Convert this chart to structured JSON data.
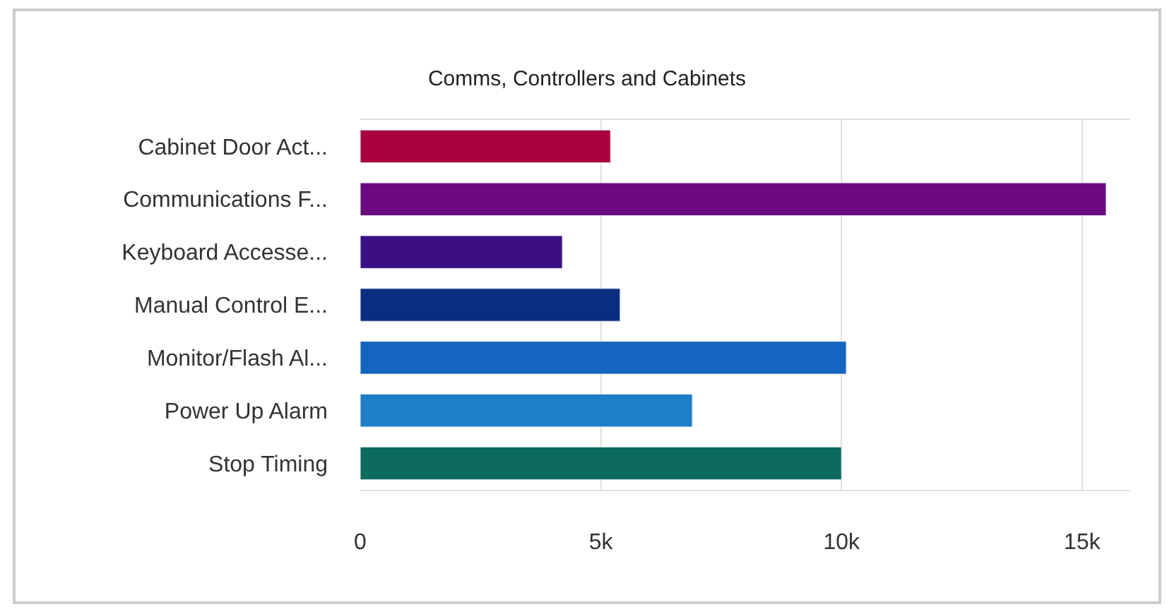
{
  "chart_data": {
    "type": "bar",
    "orientation": "horizontal",
    "title": "Comms, Controllers and Cabinets",
    "categories": [
      "Cabinet Door Act...",
      "Communications F...",
      "Keyboard Accesse...",
      "Manual Control E...",
      "Monitor/Flash Al...",
      "Power Up Alarm",
      "Stop Timing"
    ],
    "values": [
      5200,
      15500,
      4200,
      5400,
      10100,
      6900,
      10000
    ],
    "colors": [
      "#a8003c",
      "#6a0a7e",
      "#3a0f84",
      "#0a2d80",
      "#1565c0",
      "#1e7ec8",
      "#0d6b5e"
    ],
    "xlim": [
      0,
      16000
    ],
    "xticks": [
      0,
      {
        "value": 5000,
        "label": "5k"
      },
      {
        "value": 10000,
        "label": "10k"
      },
      {
        "value": 15000,
        "label": "15k"
      }
    ],
    "grid": "x",
    "legend": false
  }
}
